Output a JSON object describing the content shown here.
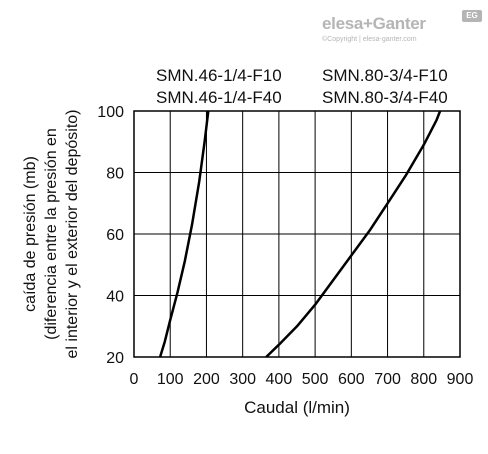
{
  "brand": {
    "name": "elesa+Ganter",
    "badge": "EG",
    "copyright": "©Copyright | elesa-ganter.com"
  },
  "chart_data": {
    "type": "line",
    "title": "",
    "xlabel": "Caudal (l/min)",
    "ylabel_lines": [
      "caída de presión (mb)",
      "(diferencia entre la presión en",
      "el interior y el exterior del depósito)"
    ],
    "xlim": [
      0,
      900
    ],
    "ylim": [
      20,
      100
    ],
    "x_ticks": [
      0,
      100,
      200,
      300,
      400,
      500,
      600,
      700,
      800,
      900
    ],
    "y_ticks": [
      20,
      40,
      60,
      80,
      100
    ],
    "grid": true,
    "legend": {
      "left": [
        "SMN.46-1/4-F10",
        "SMN.46-1/4-F40"
      ],
      "right": [
        "SMN.80-3/4-F10",
        "SMN.80-3/4-F40"
      ]
    },
    "series": [
      {
        "color": "#000000",
        "points": [
          [
            72,
            20
          ],
          [
            85,
            25
          ],
          [
            100,
            32
          ],
          [
            120,
            41
          ],
          [
            140,
            51
          ],
          [
            160,
            63
          ],
          [
            180,
            77
          ],
          [
            195,
            90
          ],
          [
            205,
            100
          ]
        ]
      },
      {
        "color": "#000000",
        "points": [
          [
            365,
            20
          ],
          [
            400,
            24
          ],
          [
            450,
            30
          ],
          [
            500,
            37
          ],
          [
            550,
            45
          ],
          [
            600,
            53
          ],
          [
            650,
            61
          ],
          [
            700,
            70
          ],
          [
            750,
            79
          ],
          [
            800,
            89
          ],
          [
            835,
            97
          ],
          [
            845,
            100
          ]
        ]
      }
    ]
  }
}
